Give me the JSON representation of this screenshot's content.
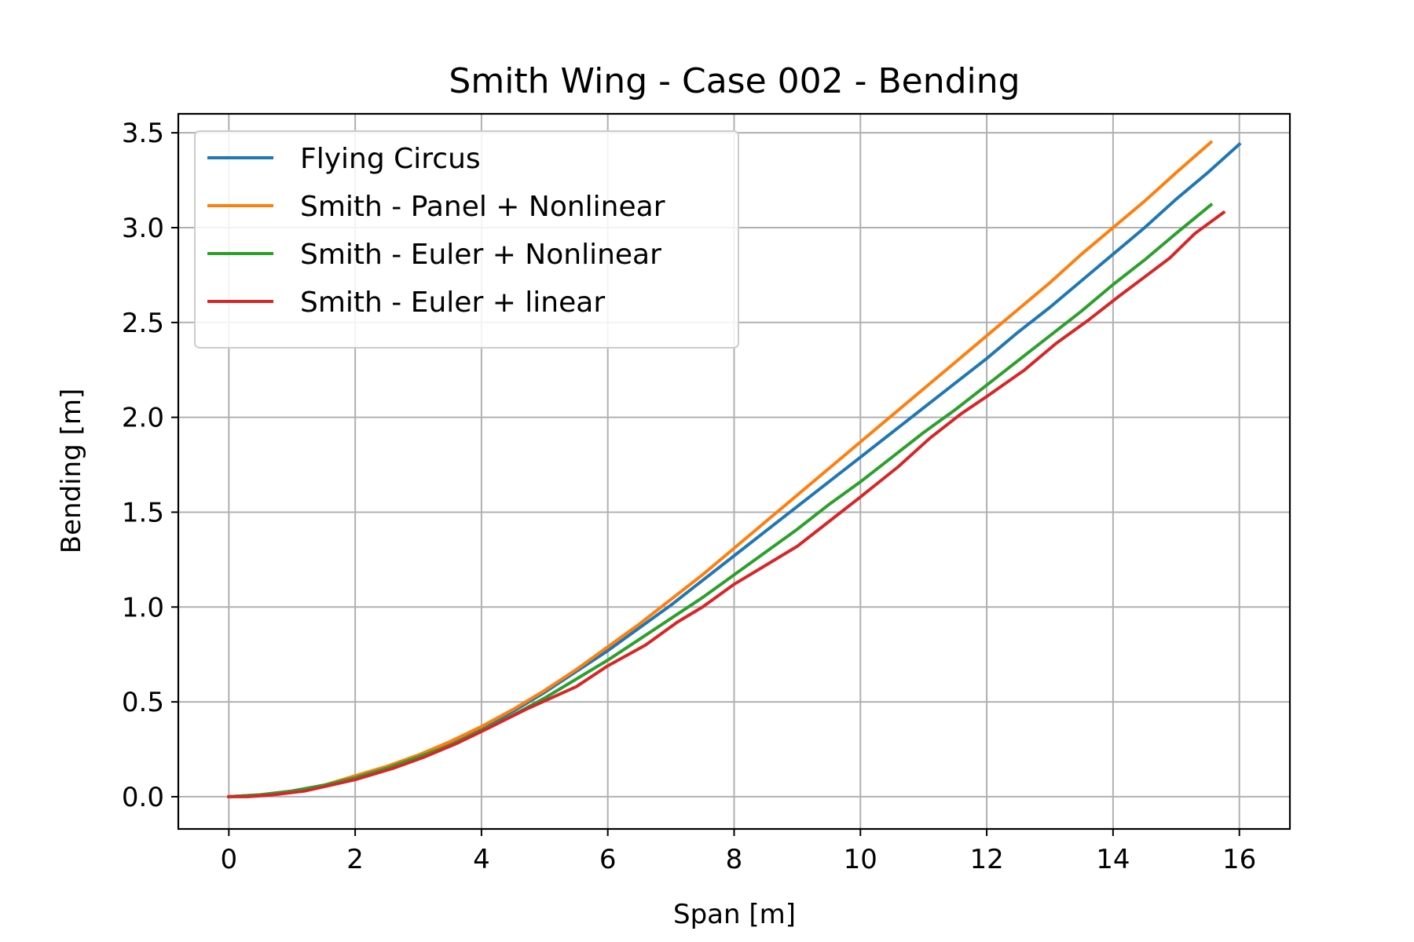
{
  "chart_data": {
    "type": "line",
    "title": "Smith Wing - Case 002 - Bending",
    "xlabel": "Span [m]",
    "ylabel": "Bending [m]",
    "xlim": [
      -0.8,
      16.8
    ],
    "ylim": [
      -0.17,
      3.6
    ],
    "xticks": [
      0,
      2,
      4,
      6,
      8,
      10,
      12,
      14,
      16
    ],
    "yticks": [
      0.0,
      0.5,
      1.0,
      1.5,
      2.0,
      2.5,
      3.0,
      3.5
    ],
    "xtick_labels": [
      "0",
      "2",
      "4",
      "6",
      "8",
      "10",
      "12",
      "14",
      "16"
    ],
    "ytick_labels": [
      "0.0",
      "0.5",
      "1.0",
      "1.5",
      "2.0",
      "2.5",
      "3.0",
      "3.5"
    ],
    "grid": true,
    "legend_position": "upper-left",
    "series": [
      {
        "name": "Flying Circus",
        "color": "#1f77b4",
        "x": [
          0,
          0.5,
          1,
          1.5,
          2,
          2.5,
          3,
          3.5,
          4,
          4.5,
          5,
          5.5,
          6,
          6.5,
          7,
          7.5,
          8,
          8.5,
          9,
          9.5,
          10,
          10.5,
          11,
          11.5,
          12,
          12.5,
          13,
          13.5,
          14,
          14.5,
          15,
          15.5,
          16
        ],
        "y": [
          0.0,
          0.01,
          0.03,
          0.06,
          0.1,
          0.15,
          0.21,
          0.28,
          0.36,
          0.45,
          0.55,
          0.66,
          0.77,
          0.89,
          1.01,
          1.14,
          1.27,
          1.4,
          1.53,
          1.66,
          1.79,
          1.92,
          2.05,
          2.18,
          2.31,
          2.45,
          2.58,
          2.72,
          2.86,
          3.0,
          3.15,
          3.29,
          3.44
        ]
      },
      {
        "name": "Smith - Panel + Nonlinear",
        "color": "#ff7f0e",
        "x": [
          0,
          0.5,
          1,
          1.5,
          2,
          2.5,
          3,
          3.5,
          4,
          4.5,
          5,
          5.5,
          6,
          6.5,
          7,
          7.5,
          8,
          8.5,
          9,
          9.5,
          10,
          10.5,
          11,
          11.5,
          12,
          12.5,
          13,
          13.5,
          14,
          14.5,
          15,
          15.55
        ],
        "y": [
          0.0,
          0.01,
          0.03,
          0.06,
          0.11,
          0.16,
          0.22,
          0.29,
          0.37,
          0.46,
          0.56,
          0.67,
          0.79,
          0.91,
          1.04,
          1.17,
          1.31,
          1.45,
          1.59,
          1.73,
          1.87,
          2.01,
          2.15,
          2.29,
          2.43,
          2.57,
          2.71,
          2.86,
          3.0,
          3.14,
          3.29,
          3.45
        ]
      },
      {
        "name": "Smith - Euler + Nonlinear",
        "color": "#2ca02c",
        "x": [
          0,
          0.5,
          1,
          1.5,
          2,
          2.5,
          3,
          3.5,
          4,
          4.5,
          5,
          5.5,
          6,
          6.5,
          7,
          7.5,
          8,
          8.5,
          9,
          9.5,
          10,
          10.5,
          11,
          11.5,
          12,
          12.5,
          13,
          13.5,
          14,
          14.5,
          15,
          15.55
        ],
        "y": [
          0.0,
          0.01,
          0.03,
          0.06,
          0.1,
          0.15,
          0.21,
          0.27,
          0.35,
          0.43,
          0.52,
          0.62,
          0.72,
          0.83,
          0.94,
          1.05,
          1.17,
          1.29,
          1.41,
          1.54,
          1.66,
          1.79,
          1.92,
          2.04,
          2.17,
          2.3,
          2.43,
          2.56,
          2.7,
          2.83,
          2.97,
          3.12
        ]
      },
      {
        "name": "Smith - Euler + linear",
        "color": "#d62728",
        "x": [
          0,
          0.3,
          0.7,
          1.2,
          1.6,
          2,
          2.6,
          3.1,
          3.6,
          4.1,
          4.7,
          5.1,
          5.5,
          6,
          6.6,
          7.1,
          7.5,
          8,
          8.5,
          9,
          9.5,
          10,
          10.6,
          11.1,
          11.6,
          12,
          12.6,
          13.1,
          13.6,
          14.1,
          14.5,
          14.9,
          15.3,
          15.75
        ],
        "y": [
          0.0,
          0.0,
          0.01,
          0.03,
          0.06,
          0.09,
          0.15,
          0.21,
          0.28,
          0.36,
          0.46,
          0.52,
          0.58,
          0.69,
          0.8,
          0.92,
          1.0,
          1.12,
          1.22,
          1.32,
          1.45,
          1.58,
          1.74,
          1.89,
          2.02,
          2.11,
          2.25,
          2.39,
          2.51,
          2.64,
          2.74,
          2.84,
          2.97,
          3.08
        ]
      }
    ]
  }
}
